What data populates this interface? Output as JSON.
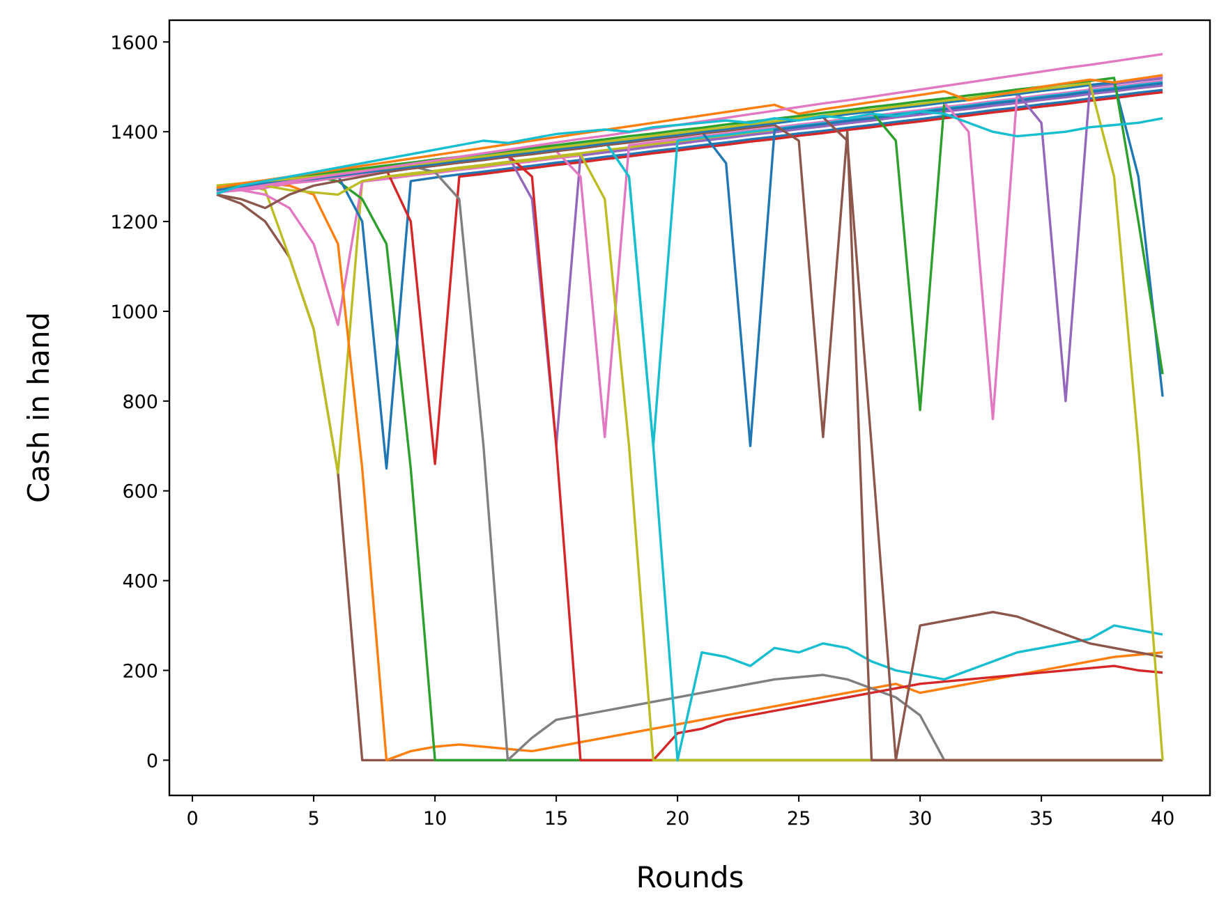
{
  "chart_data": {
    "type": "line",
    "title": "",
    "xlabel": "Rounds",
    "ylabel": "Cash in hand",
    "xlim": [
      -0.95,
      41.95
    ],
    "ylim": [
      -78.5,
      1648.5
    ],
    "xticks": [
      0,
      5,
      10,
      15,
      20,
      25,
      30,
      35,
      40
    ],
    "yticks": [
      0,
      200,
      400,
      600,
      800,
      1000,
      1200,
      1400,
      1600
    ],
    "grid": false,
    "legend": "none",
    "x": [
      1,
      2,
      3,
      4,
      5,
      6,
      7,
      8,
      9,
      10,
      11,
      12,
      13,
      14,
      15,
      16,
      17,
      18,
      19,
      20,
      21,
      22,
      23,
      24,
      25,
      26,
      27,
      28,
      29,
      30,
      31,
      32,
      33,
      34,
      35,
      36,
      37,
      38,
      39,
      40
    ],
    "colors": [
      "#1f77b4",
      "#ff7f0e",
      "#2ca02c",
      "#d62728",
      "#9467bd",
      "#8c564b",
      "#e377c2",
      "#7f7f7f",
      "#bcbd22",
      "#17becf"
    ],
    "series": [
      {
        "color": "#8c564b",
        "values": [
          1260,
          1240,
          1200,
          1120,
          960,
          640,
          0,
          0,
          0,
          0,
          0,
          0,
          0,
          0,
          0,
          0,
          0,
          0,
          0,
          0,
          0,
          0,
          0,
          0,
          0,
          0,
          0,
          0,
          0,
          0,
          0,
          0,
          0,
          0,
          0,
          0,
          0,
          0,
          0,
          0
        ]
      },
      {
        "color": "#bcbd22",
        "values": [
          1280,
          1285,
          1270,
          1120,
          960,
          640,
          1290,
          1300,
          1307,
          1313,
          1320,
          1326,
          1333,
          1339,
          1346,
          1352,
          1359,
          1365,
          1372,
          1378,
          1385,
          1391,
          1398,
          1404,
          1411,
          1417,
          1424,
          1430,
          1437,
          1443,
          1450,
          1456,
          1463,
          1469,
          1476,
          1482,
          1489,
          1495,
          1502,
          1508
        ]
      },
      {
        "color": "#e377c2",
        "values": [
          1265,
          1270,
          1260,
          1230,
          1150,
          970,
          1289,
          1295,
          1302,
          1308,
          1315,
          1321,
          1328,
          1334,
          1341,
          1347,
          1354,
          1360,
          1367,
          1373,
          1380,
          1386,
          1393,
          1399,
          1406,
          1412,
          1419,
          1425,
          1432,
          1438,
          1445,
          1451,
          1458,
          1464,
          1471,
          1477,
          1484,
          1490,
          1497,
          1503
        ]
      },
      {
        "color": "#ff7f0e",
        "values": [
          1275,
          1280,
          1285,
          1280,
          1260,
          1150,
          650,
          0,
          20,
          30,
          35,
          30,
          25,
          20,
          30,
          40,
          50,
          60,
          70,
          80,
          90,
          100,
          110,
          120,
          130,
          140,
          150,
          160,
          170,
          150,
          160,
          170,
          180,
          190,
          200,
          210,
          220,
          230,
          235,
          240
        ]
      },
      {
        "color": "#2ca02c",
        "values": [
          1275,
          1282,
          1290,
          1295,
          1300,
          1290,
          1250,
          1150,
          650,
          0,
          0,
          0,
          0,
          0,
          0,
          0,
          0,
          0,
          0,
          0,
          0,
          0,
          0,
          0,
          0,
          0,
          0,
          0,
          0,
          0,
          0,
          0,
          0,
          0,
          0,
          0,
          0,
          0,
          0,
          0
        ]
      },
      {
        "color": "#1f77b4",
        "values": [
          1270,
          1275,
          1285,
          1290,
          1295,
          1302,
          1200,
          650,
          1290,
          1298,
          1305,
          1311,
          1318,
          1324,
          1331,
          1337,
          1344,
          1350,
          1357,
          1363,
          1370,
          1376,
          1383,
          1389,
          1396,
          1402,
          1409,
          1415,
          1422,
          1428,
          1435,
          1441,
          1448,
          1454,
          1461,
          1467,
          1474,
          1480,
          1487,
          1493
        ]
      },
      {
        "color": "#d62728",
        "values": [
          1270,
          1275,
          1285,
          1290,
          1295,
          1302,
          1309,
          1315,
          1200,
          660,
          1300,
          1306,
          1313,
          1319,
          1326,
          1332,
          1339,
          1345,
          1352,
          1358,
          1365,
          1371,
          1378,
          1384,
          1391,
          1397,
          1404,
          1410,
          1417,
          1423,
          1430,
          1436,
          1443,
          1449,
          1456,
          1462,
          1469,
          1475,
          1482,
          1488
        ]
      },
      {
        "color": "#7f7f7f",
        "values": [
          1270,
          1278,
          1286,
          1293,
          1300,
          1306,
          1312,
          1318,
          1324,
          1310,
          1250,
          700,
          0,
          50,
          90,
          100,
          110,
          120,
          130,
          140,
          150,
          160,
          170,
          180,
          185,
          190,
          180,
          160,
          140,
          100,
          0,
          0,
          0,
          0,
          0,
          0,
          0,
          0,
          0,
          0
        ]
      },
      {
        "color": "#9467bd",
        "values": [
          1270,
          1275,
          1285,
          1290,
          1295,
          1302,
          1309,
          1315,
          1322,
          1328,
          1335,
          1341,
          1348,
          1250,
          700,
          1347,
          1354,
          1360,
          1367,
          1373,
          1380,
          1386,
          1393,
          1399,
          1406,
          1412,
          1419,
          1425,
          1432,
          1438,
          1445,
          1451,
          1458,
          1464,
          1471,
          1477,
          1484,
          1490,
          1497,
          1503
        ]
      },
      {
        "color": "#d62728",
        "values": [
          1270,
          1275,
          1285,
          1290,
          1295,
          1302,
          1309,
          1315,
          1322,
          1328,
          1335,
          1341,
          1348,
          1300,
          700,
          0,
          0,
          0,
          0,
          60,
          70,
          90,
          100,
          110,
          120,
          130,
          140,
          150,
          160,
          170,
          175,
          180,
          185,
          190,
          195,
          200,
          205,
          210,
          200,
          195
        ]
      },
      {
        "color": "#e377c2",
        "values": [
          1265,
          1270,
          1275,
          1285,
          1290,
          1298,
          1305,
          1312,
          1318,
          1325,
          1331,
          1338,
          1344,
          1351,
          1357,
          1300,
          720,
          1370,
          1377,
          1383,
          1390,
          1396,
          1403,
          1409,
          1416,
          1422,
          1429,
          1435,
          1442,
          1448,
          1455,
          1461,
          1468,
          1474,
          1481,
          1487,
          1494,
          1500,
          1507,
          1513
        ]
      },
      {
        "color": "#bcbd22",
        "values": [
          1280,
          1285,
          1280,
          1270,
          1265,
          1260,
          1290,
          1300,
          1305,
          1311,
          1318,
          1324,
          1331,
          1337,
          1344,
          1350,
          1250,
          700,
          0,
          0,
          0,
          0,
          0,
          0,
          0,
          0,
          0,
          0,
          0,
          0,
          0,
          0,
          0,
          0,
          0,
          0,
          0,
          0,
          0,
          0
        ]
      },
      {
        "color": "#17becf",
        "values": [
          1262,
          1280,
          1290,
          1295,
          1300,
          1307,
          1314,
          1320,
          1327,
          1333,
          1340,
          1346,
          1353,
          1359,
          1366,
          1372,
          1379,
          1300,
          700,
          1380,
          1387,
          1393,
          1400,
          1406,
          1413,
          1419,
          1426,
          1432,
          1439,
          1445,
          1452,
          1458,
          1465,
          1471,
          1478,
          1484,
          1491,
          1497,
          1504,
          1510
        ]
      },
      {
        "color": "#17becf",
        "values": [
          1262,
          1280,
          1290,
          1295,
          1300,
          1307,
          1314,
          1320,
          1327,
          1333,
          1340,
          1346,
          1353,
          1359,
          1366,
          1372,
          1379,
          1300,
          700,
          0,
          240,
          230,
          210,
          250,
          240,
          260,
          250,
          220,
          200,
          190,
          180,
          200,
          220,
          240,
          250,
          260,
          270,
          300,
          290,
          280
        ]
      },
      {
        "color": "#1f77b4",
        "values": [
          1270,
          1275,
          1285,
          1290,
          1295,
          1302,
          1309,
          1315,
          1322,
          1328,
          1335,
          1341,
          1348,
          1354,
          1361,
          1367,
          1374,
          1380,
          1387,
          1393,
          1400,
          1330,
          700,
          1404,
          1411,
          1417,
          1424,
          1430,
          1437,
          1443,
          1450,
          1456,
          1463,
          1469,
          1476,
          1482,
          1489,
          1495,
          1502,
          1508
        ]
      },
      {
        "color": "#8c564b",
        "values": [
          1260,
          1250,
          1230,
          1260,
          1280,
          1290,
          1300,
          1310,
          1318,
          1324,
          1331,
          1337,
          1344,
          1350,
          1357,
          1363,
          1370,
          1376,
          1383,
          1389,
          1396,
          1402,
          1409,
          1415,
          1380,
          720,
          1400,
          0,
          0,
          0,
          0,
          0,
          0,
          0,
          0,
          0,
          0,
          0,
          0,
          0
        ]
      },
      {
        "color": "#8c564b",
        "values": [
          1270,
          1275,
          1285,
          1290,
          1295,
          1302,
          1309,
          1315,
          1322,
          1328,
          1335,
          1341,
          1348,
          1354,
          1361,
          1367,
          1374,
          1380,
          1387,
          1393,
          1400,
          1406,
          1413,
          1419,
          1426,
          1432,
          1380,
          700,
          0,
          300,
          310,
          320,
          330,
          320,
          300,
          280,
          260,
          250,
          240,
          230
        ]
      },
      {
        "color": "#2ca02c",
        "values": [
          1270,
          1275,
          1285,
          1290,
          1295,
          1302,
          1309,
          1315,
          1322,
          1328,
          1335,
          1341,
          1348,
          1354,
          1361,
          1367,
          1374,
          1380,
          1387,
          1393,
          1400,
          1406,
          1413,
          1419,
          1426,
          1432,
          1439,
          1445,
          1380,
          780,
          1465,
          1471,
          1478,
          1484,
          1491,
          1497,
          1504,
          1510,
          1517,
          1523
        ]
      },
      {
        "color": "#e377c2",
        "values": [
          1268,
          1275,
          1282,
          1290,
          1295,
          1302,
          1309,
          1315,
          1322,
          1328,
          1335,
          1341,
          1348,
          1354,
          1361,
          1367,
          1374,
          1380,
          1387,
          1393,
          1400,
          1406,
          1413,
          1419,
          1426,
          1432,
          1439,
          1445,
          1452,
          1458,
          1465,
          1400,
          760,
          1484,
          1491,
          1497,
          1504,
          1510,
          1517,
          1523
        ]
      },
      {
        "color": "#9467bd",
        "values": [
          1270,
          1278,
          1286,
          1293,
          1300,
          1306,
          1312,
          1318,
          1324,
          1330,
          1337,
          1343,
          1350,
          1356,
          1363,
          1369,
          1376,
          1382,
          1389,
          1395,
          1402,
          1408,
          1415,
          1421,
          1428,
          1434,
          1441,
          1447,
          1454,
          1460,
          1467,
          1473,
          1480,
          1486,
          1420,
          800,
          1500,
          1506,
          1513,
          1519
        ]
      },
      {
        "color": "#1f77b4",
        "values": [
          1270,
          1275,
          1285,
          1290,
          1295,
          1302,
          1309,
          1315,
          1322,
          1328,
          1335,
          1341,
          1348,
          1354,
          1361,
          1367,
          1374,
          1380,
          1387,
          1393,
          1400,
          1406,
          1413,
          1419,
          1426,
          1432,
          1439,
          1445,
          1452,
          1458,
          1465,
          1471,
          1478,
          1484,
          1491,
          1497,
          1504,
          1510,
          1300,
          810
        ]
      },
      {
        "color": "#2ca02c",
        "values": [
          1275,
          1282,
          1290,
          1298,
          1305,
          1312,
          1318,
          1325,
          1331,
          1338,
          1344,
          1351,
          1357,
          1364,
          1370,
          1377,
          1383,
          1390,
          1396,
          1403,
          1409,
          1416,
          1422,
          1429,
          1435,
          1442,
          1448,
          1455,
          1461,
          1468,
          1474,
          1481,
          1487,
          1494,
          1500,
          1507,
          1513,
          1520,
          1200,
          860
        ]
      },
      {
        "color": "#bcbd22",
        "values": [
          1280,
          1285,
          1290,
          1295,
          1300,
          1306,
          1313,
          1319,
          1326,
          1332,
          1339,
          1345,
          1352,
          1358,
          1365,
          1371,
          1378,
          1384,
          1391,
          1397,
          1404,
          1410,
          1417,
          1423,
          1430,
          1436,
          1443,
          1449,
          1456,
          1462,
          1469,
          1475,
          1482,
          1488,
          1495,
          1501,
          1508,
          1300,
          700,
          0
        ]
      },
      {
        "color": "#ff7f0e",
        "values": [
          1275,
          1285,
          1292,
          1300,
          1308,
          1316,
          1324,
          1332,
          1340,
          1348,
          1356,
          1364,
          1372,
          1380,
          1388,
          1396,
          1404,
          1412,
          1420,
          1428,
          1436,
          1444,
          1452,
          1460,
          1440,
          1450,
          1458,
          1466,
          1474,
          1482,
          1490,
          1470,
          1480,
          1490,
          1500,
          1508,
          1516,
          1510,
          1518,
          1526
        ]
      },
      {
        "color": "#e377c2",
        "values": [
          1265,
          1273,
          1281,
          1289,
          1297,
          1305,
          1312,
          1320,
          1328,
          1336,
          1344,
          1352,
          1360,
          1368,
          1376,
          1384,
          1391,
          1399,
          1407,
          1415,
          1423,
          1431,
          1439,
          1447,
          1455,
          1463,
          1470,
          1478,
          1486,
          1494,
          1502,
          1510,
          1518,
          1526,
          1534,
          1542,
          1549,
          1557,
          1565,
          1573
        ]
      },
      {
        "color": "#17becf",
        "values": [
          1262,
          1280,
          1290,
          1300,
          1310,
          1320,
          1330,
          1340,
          1350,
          1360,
          1370,
          1380,
          1375,
          1385,
          1395,
          1400,
          1405,
          1400,
          1410,
          1415,
          1420,
          1425,
          1420,
          1430,
          1425,
          1435,
          1430,
          1440,
          1435,
          1445,
          1440,
          1420,
          1400,
          1390,
          1395,
          1400,
          1410,
          1415,
          1420,
          1430
        ]
      }
    ]
  }
}
